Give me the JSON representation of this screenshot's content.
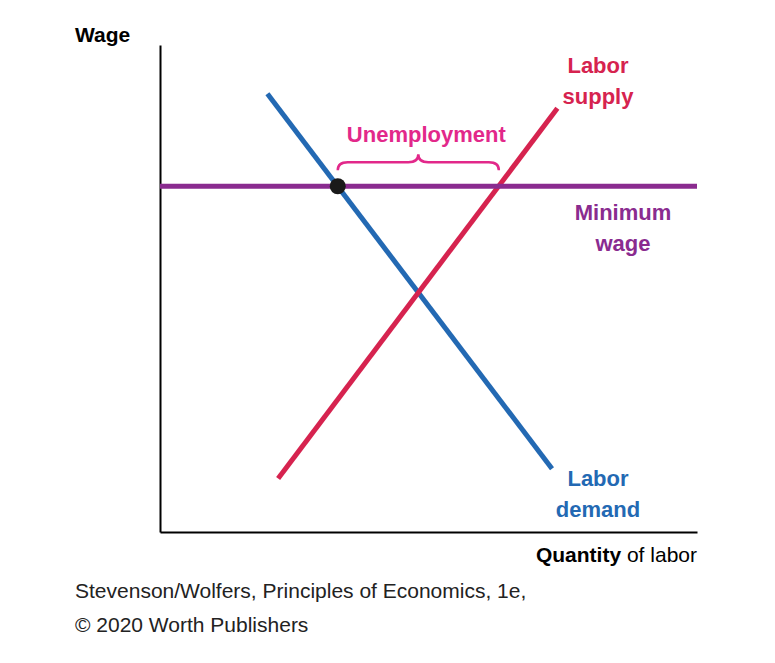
{
  "chart_data": {
    "type": "line",
    "x_label": "Quantity of labor",
    "y_label": "Wage",
    "xlim": [
      0,
      10
    ],
    "ylim": [
      0,
      10
    ],
    "tick_labels": false,
    "grid": false,
    "series": [
      {
        "name": "Labor demand",
        "color": "#2369b3",
        "x": [
          2.0,
          7.3
        ],
        "values": [
          9.0,
          1.3
        ]
      },
      {
        "name": "Labor supply",
        "color": "#d6234f",
        "x": [
          2.2,
          7.4
        ],
        "values": [
          1.1,
          8.7
        ]
      },
      {
        "name": "Minimum wage",
        "color": "#8a2b8f",
        "x": [
          0,
          10
        ],
        "values": [
          7.1,
          7.1
        ]
      }
    ],
    "points": [
      {
        "x": 3.31,
        "y": 7.1
      }
    ],
    "annotations": [
      {
        "text": "Unemployment",
        "x": [
          3.31,
          6.31
        ],
        "y": 7.1,
        "color": "#e2288a"
      }
    ],
    "source": [
      "Stevenson/Wolfers, Principles of Economics, 1e,",
      "© 2020 Worth Publishers"
    ]
  }
}
